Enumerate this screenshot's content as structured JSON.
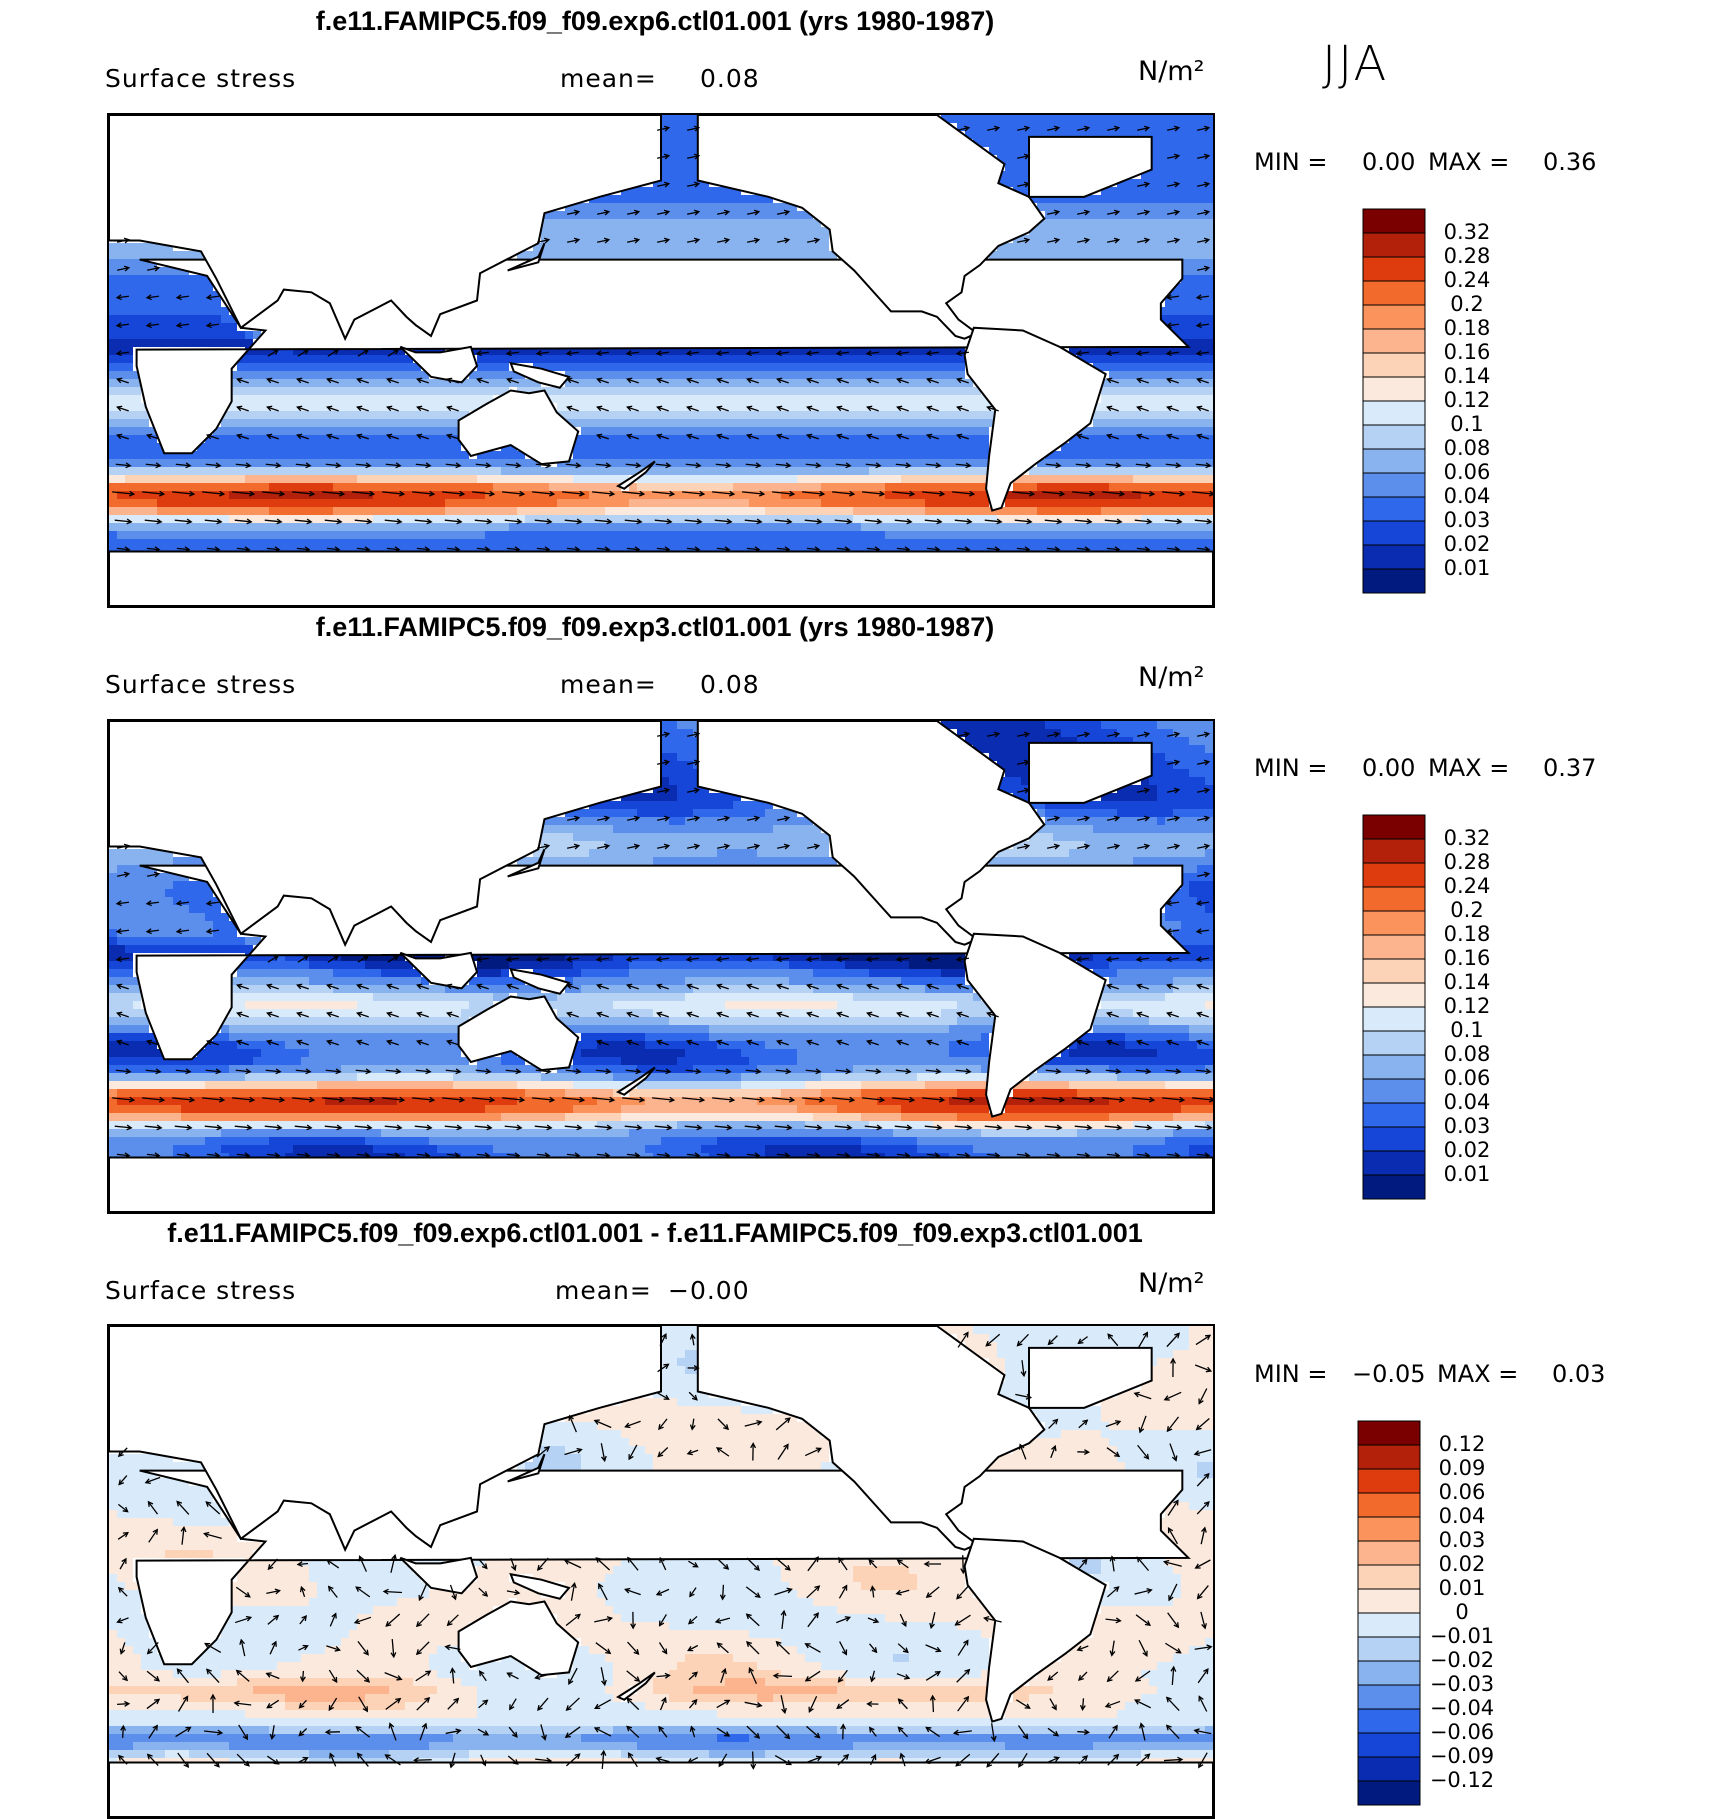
{
  "season": "JJA",
  "panels": [
    {
      "title": "f.e11.FAMIPC5.f09_f09.exp6.ctl01.001 (yrs 1980-1987)",
      "variable": "Surface stress",
      "mean_label": "mean=",
      "mean_value": "0.08",
      "units": "N/m²",
      "min_label": "MIN =",
      "min_value": "0.00",
      "max_label": "MAX =",
      "max_value": "0.36"
    },
    {
      "title": "f.e11.FAMIPC5.f09_f09.exp3.ctl01.001 (yrs 1980-1987)",
      "variable": "Surface stress",
      "mean_label": "mean=",
      "mean_value": "0.08",
      "units": "N/m²",
      "min_label": "MIN =",
      "min_value": "0.00",
      "max_label": "MAX =",
      "max_value": "0.37"
    },
    {
      "title": "f.e11.FAMIPC5.f09_f09.exp6.ctl01.001 - f.e11.FAMIPC5.f09_f09.exp3.ctl01.001",
      "variable": "Surface stress",
      "mean_label": "mean=",
      "mean_value": "−0.00",
      "units": "N/m²",
      "min_label": "MIN =",
      "min_value": "−0.05",
      "max_label": "MAX =",
      "max_value": "0.03"
    }
  ],
  "colorbars": [
    {
      "labels": [
        "0.32",
        "0.28",
        "0.24",
        "0.2",
        "0.18",
        "0.16",
        "0.14",
        "0.12",
        "0.1",
        "0.08",
        "0.06",
        "0.04",
        "0.03",
        "0.02",
        "0.01"
      ],
      "colors": [
        "#7a0000",
        "#b3210a",
        "#de3c0e",
        "#f36a2d",
        "#fa935c",
        "#fcb48f",
        "#fdd3b8",
        "#fbe9dd",
        "#d9ebfb",
        "#b5d2f5",
        "#89b3ee",
        "#5c8feb",
        "#2f68ea",
        "#1646d8",
        "#0a2cb0",
        "#001a80"
      ]
    },
    {
      "labels": [
        "0.32",
        "0.28",
        "0.24",
        "0.2",
        "0.18",
        "0.16",
        "0.14",
        "0.12",
        "0.1",
        "0.08",
        "0.06",
        "0.04",
        "0.03",
        "0.02",
        "0.01"
      ],
      "colors": [
        "#7a0000",
        "#b3210a",
        "#de3c0e",
        "#f36a2d",
        "#fa935c",
        "#fcb48f",
        "#fdd3b8",
        "#fbe9dd",
        "#d9ebfb",
        "#b5d2f5",
        "#89b3ee",
        "#5c8feb",
        "#2f68ea",
        "#1646d8",
        "#0a2cb0",
        "#001a80"
      ]
    },
    {
      "labels": [
        "0.12",
        "0.09",
        "0.06",
        "0.04",
        "0.03",
        "0.02",
        "0.01",
        "0",
        "−0.01",
        "−0.02",
        "−0.03",
        "−0.04",
        "−0.06",
        "−0.09",
        "−0.12"
      ],
      "colors": [
        "#7a0000",
        "#b3210a",
        "#de3c0e",
        "#f36a2d",
        "#fa935c",
        "#fcb48f",
        "#fdd3b8",
        "#fbe9dd",
        "#d9ebfb",
        "#b5d2f5",
        "#89b3ee",
        "#5c8feb",
        "#2f68ea",
        "#1646d8",
        "#0a2cb0",
        "#001a80"
      ]
    }
  ],
  "chart_data": [
    {
      "type": "heatmap",
      "title": "f.e11.FAMIPC5.f09_f09.exp6.ctl01.001 (yrs 1980-1987)",
      "variable": "Surface stress",
      "units": "N/m²",
      "season": "JJA",
      "mean": 0.08,
      "min": 0.0,
      "max": 0.36,
      "levels": [
        0.01,
        0.02,
        0.03,
        0.04,
        0.06,
        0.08,
        0.1,
        0.12,
        0.14,
        0.16,
        0.18,
        0.2,
        0.24,
        0.28,
        0.32
      ],
      "overlay": "vector"
    },
    {
      "type": "heatmap",
      "title": "f.e11.FAMIPC5.f09_f09.exp3.ctl01.001 (yrs 1980-1987)",
      "variable": "Surface stress",
      "units": "N/m²",
      "season": "JJA",
      "mean": 0.08,
      "min": 0.0,
      "max": 0.37,
      "levels": [
        0.01,
        0.02,
        0.03,
        0.04,
        0.06,
        0.08,
        0.1,
        0.12,
        0.14,
        0.16,
        0.18,
        0.2,
        0.24,
        0.28,
        0.32
      ],
      "overlay": "vector"
    },
    {
      "type": "heatmap",
      "title": "f.e11.FAMIPC5.f09_f09.exp6.ctl01.001 - f.e11.FAMIPC5.f09_f09.exp3.ctl01.001",
      "variable": "Surface stress",
      "units": "N/m²",
      "season": "JJA",
      "mean": -0.0,
      "min": -0.05,
      "max": 0.03,
      "levels": [
        -0.12,
        -0.09,
        -0.06,
        -0.04,
        -0.03,
        -0.02,
        -0.01,
        0,
        0.01,
        0.02,
        0.03,
        0.04,
        0.06,
        0.09,
        0.12
      ],
      "overlay": "vector"
    }
  ]
}
